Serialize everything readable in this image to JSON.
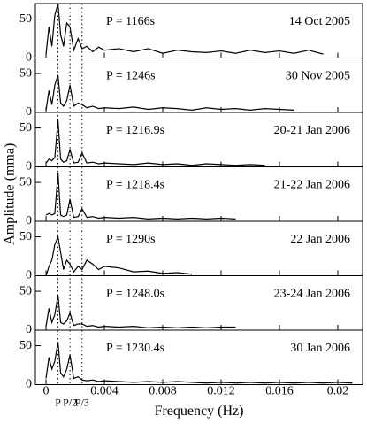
{
  "chart_data": [
    {
      "type": "line",
      "labels": [
        "P = 1166s",
        "14 Oct 2005"
      ],
      "color": "#000000",
      "xlim": [
        -0.00073,
        0.0217
      ],
      "ylim": [
        0,
        70
      ],
      "yticks": [
        0,
        50
      ],
      "x": [
        0,
        0.0002,
        0.0004,
        0.0006,
        0.00082,
        0.001,
        0.0012,
        0.00142,
        0.00164,
        0.0019,
        0.0022,
        0.00247,
        0.0028,
        0.0032,
        0.0036,
        0.004,
        0.005,
        0.006,
        0.007,
        0.008,
        0.009,
        0.01,
        0.011,
        0.012,
        0.013,
        0.014,
        0.015,
        0.016,
        0.017,
        0.018,
        0.019
      ],
      "values": [
        5,
        40,
        15,
        55,
        70,
        30,
        15,
        45,
        40,
        10,
        25,
        12,
        15,
        8,
        14,
        10,
        12,
        8,
        12,
        6,
        10,
        8,
        7,
        9,
        6,
        10,
        7,
        9,
        6,
        10,
        5
      ]
    },
    {
      "type": "line",
      "labels": [
        "P = 1246s",
        "30 Nov 2005"
      ],
      "color": "#000000",
      "xlim": [
        -0.00073,
        0.0217
      ],
      "ylim": [
        0,
        70
      ],
      "yticks": [
        0,
        50
      ],
      "x": [
        0,
        0.0002,
        0.0004,
        0.0006,
        0.00082,
        0.001,
        0.0012,
        0.00142,
        0.00164,
        0.0019,
        0.0022,
        0.00247,
        0.0028,
        0.0032,
        0.0036,
        0.004,
        0.005,
        0.006,
        0.007,
        0.008,
        0.009,
        0.01,
        0.011,
        0.012,
        0.013,
        0.014,
        0.015,
        0.016,
        0.017
      ],
      "values": [
        3,
        28,
        10,
        35,
        48,
        12,
        8,
        15,
        35,
        8,
        12,
        10,
        6,
        8,
        5,
        6,
        5,
        7,
        4,
        6,
        5,
        3,
        6,
        4,
        5,
        3,
        5,
        4,
        3
      ]
    },
    {
      "type": "line",
      "labels": [
        "P = 1216.9s",
        "20-21 Jan 2006"
      ],
      "color": "#000000",
      "xlim": [
        -0.00073,
        0.0217
      ],
      "ylim": [
        0,
        70
      ],
      "yticks": [
        0,
        50
      ],
      "x": [
        0,
        0.0002,
        0.0004,
        0.0006,
        0.00082,
        0.001,
        0.0012,
        0.00142,
        0.00164,
        0.0019,
        0.0022,
        0.00247,
        0.0028,
        0.0032,
        0.0036,
        0.004,
        0.005,
        0.006,
        0.007,
        0.008,
        0.009,
        0.01,
        0.011,
        0.012,
        0.013,
        0.014,
        0.015
      ],
      "values": [
        5,
        10,
        8,
        12,
        60,
        10,
        6,
        8,
        22,
        5,
        6,
        18,
        5,
        6,
        4,
        5,
        4,
        3,
        5,
        3,
        4,
        2,
        4,
        3,
        2,
        3,
        2
      ]
    },
    {
      "type": "line",
      "labels": [
        "P = 1218.4s",
        "21-22 Jan 2006"
      ],
      "color": "#000000",
      "xlim": [
        -0.00073,
        0.0217
      ],
      "ylim": [
        0,
        70
      ],
      "yticks": [
        0,
        50
      ],
      "y_label": "Amplitude (mma)",
      "x": [
        0,
        0.0002,
        0.0004,
        0.0006,
        0.00082,
        0.001,
        0.0012,
        0.00142,
        0.00164,
        0.0019,
        0.0022,
        0.00247,
        0.0028,
        0.0032,
        0.0036,
        0.004,
        0.005,
        0.006,
        0.007,
        0.008,
        0.009,
        0.01,
        0.011,
        0.012,
        0.013
      ],
      "values": [
        8,
        10,
        8,
        10,
        62,
        8,
        6,
        8,
        28,
        5,
        6,
        16,
        5,
        6,
        4,
        5,
        4,
        5,
        3,
        4,
        3,
        4,
        3,
        4,
        3
      ]
    },
    {
      "type": "line",
      "labels": [
        "P = 1290s",
        "22 Jan 2006"
      ],
      "color": "#000000",
      "xlim": [
        -0.00073,
        0.0217
      ],
      "ylim": [
        0,
        70
      ],
      "yticks": [
        0,
        50
      ],
      "x": [
        0,
        0.0002,
        0.0004,
        0.0006,
        0.00082,
        0.001,
        0.0012,
        0.00142,
        0.00164,
        0.0019,
        0.0022,
        0.00247,
        0.0028,
        0.0032,
        0.0036,
        0.004,
        0.005,
        0.006,
        0.007,
        0.008,
        0.009,
        0.01
      ],
      "values": [
        0,
        12,
        20,
        40,
        50,
        30,
        8,
        20,
        15,
        5,
        12,
        8,
        20,
        15,
        8,
        12,
        10,
        5,
        6,
        3,
        4,
        2
      ]
    },
    {
      "type": "line",
      "labels": [
        "P = 1248.0s",
        "23-24 Jan 2006"
      ],
      "color": "#000000",
      "xlim": [
        -0.00073,
        0.0217
      ],
      "ylim": [
        0,
        70
      ],
      "yticks": [
        0,
        50
      ],
      "x": [
        0,
        0.0002,
        0.0004,
        0.0006,
        0.00082,
        0.001,
        0.0012,
        0.00142,
        0.00164,
        0.0019,
        0.0022,
        0.00247,
        0.0028,
        0.0032,
        0.0036,
        0.004,
        0.005,
        0.006,
        0.007,
        0.008,
        0.009,
        0.01,
        0.011,
        0.012,
        0.013
      ],
      "values": [
        5,
        28,
        10,
        20,
        45,
        10,
        8,
        12,
        22,
        6,
        8,
        8,
        5,
        6,
        4,
        5,
        4,
        5,
        3,
        4,
        3,
        4,
        3,
        4,
        4
      ]
    },
    {
      "type": "line",
      "labels": [
        "P = 1230.4s",
        "30 Jan 2006"
      ],
      "color": "#000000",
      "xlim": [
        -0.00073,
        0.0217
      ],
      "ylim": [
        0,
        70
      ],
      "yticks": [
        0,
        50
      ],
      "xticks": [
        0,
        0.004,
        0.008,
        0.012,
        0.016,
        0.02
      ],
      "x_label": "Frequency (Hz)",
      "markers": [
        {
          "value": 0.00082,
          "label": "P"
        },
        {
          "value": 0.00164,
          "label": "P/2"
        },
        {
          "value": 0.00247,
          "label": "P/3"
        }
      ],
      "x": [
        0,
        0.0002,
        0.0004,
        0.0006,
        0.00082,
        0.001,
        0.0012,
        0.00142,
        0.00164,
        0.0019,
        0.0022,
        0.00247,
        0.0028,
        0.0032,
        0.0036,
        0.004,
        0.005,
        0.006,
        0.007,
        0.008,
        0.009,
        0.01,
        0.011,
        0.012,
        0.013,
        0.014,
        0.015,
        0.016,
        0.017,
        0.018,
        0.019,
        0.02,
        0.021
      ],
      "values": [
        8,
        35,
        20,
        30,
        55,
        15,
        10,
        20,
        38,
        8,
        10,
        6,
        5,
        6,
        4,
        5,
        4,
        3,
        4,
        3,
        4,
        3,
        2,
        3,
        2,
        3,
        2,
        3,
        2,
        3,
        2,
        3,
        2
      ]
    }
  ]
}
